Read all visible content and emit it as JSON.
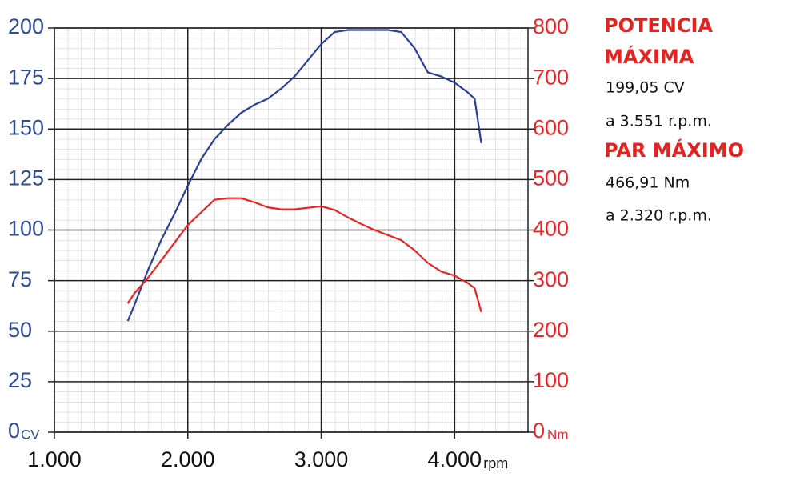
{
  "chart_data": {
    "type": "line",
    "x": [
      1550,
      1600,
      1700,
      1800,
      1900,
      2000,
      2100,
      2200,
      2300,
      2400,
      2500,
      2600,
      2700,
      2800,
      2900,
      3000,
      3100,
      3200,
      3300,
      3400,
      3500,
      3600,
      3700,
      3800,
      3900,
      4000,
      4100,
      4150,
      4200
    ],
    "series": [
      {
        "name": "Potencia",
        "color": "#2b3f9c",
        "values": [
          55,
          63,
          80,
          95,
          108,
          122,
          135,
          145,
          152,
          158,
          162,
          165,
          170,
          176,
          184,
          192,
          198,
          199,
          199,
          199,
          199,
          198,
          190,
          178,
          176,
          173,
          168,
          165,
          143
        ]
      },
      {
        "name": "Par",
        "color": "#ee2222",
        "axis": "y2",
        "values": [
          255,
          275,
          305,
          340,
          375,
          410,
          435,
          460,
          463,
          463,
          455,
          445,
          441,
          441,
          444,
          447,
          440,
          425,
          412,
          400,
          390,
          380,
          360,
          335,
          318,
          310,
          295,
          285,
          238
        ]
      }
    ],
    "xlim": [
      1000,
      4550
    ],
    "xticks": [
      {
        "value": 1000,
        "label": "1.000"
      },
      {
        "value": 2000,
        "label": "2.000"
      },
      {
        "value": 3000,
        "label": "3.000"
      },
      {
        "value": 4000,
        "label": "4.000"
      }
    ],
    "x_unit": "rpm",
    "ylim": [
      0,
      200
    ],
    "yticks": [
      0,
      25,
      50,
      75,
      100,
      125,
      150,
      175,
      200
    ],
    "y_unit": "CV",
    "y2lim": [
      0,
      800
    ],
    "y2ticks": [
      0,
      100,
      200,
      300,
      400,
      500,
      600,
      700,
      800
    ],
    "y2_unit": "Nm",
    "grid": true,
    "annotations": [
      "POTENCIA",
      "MÁXIMA",
      "199,05 CV",
      "a 3.551 r.p.m.",
      "PAR MÁXIMO",
      "466,91 Nm",
      "a 2.320 r.p.m."
    ]
  }
}
